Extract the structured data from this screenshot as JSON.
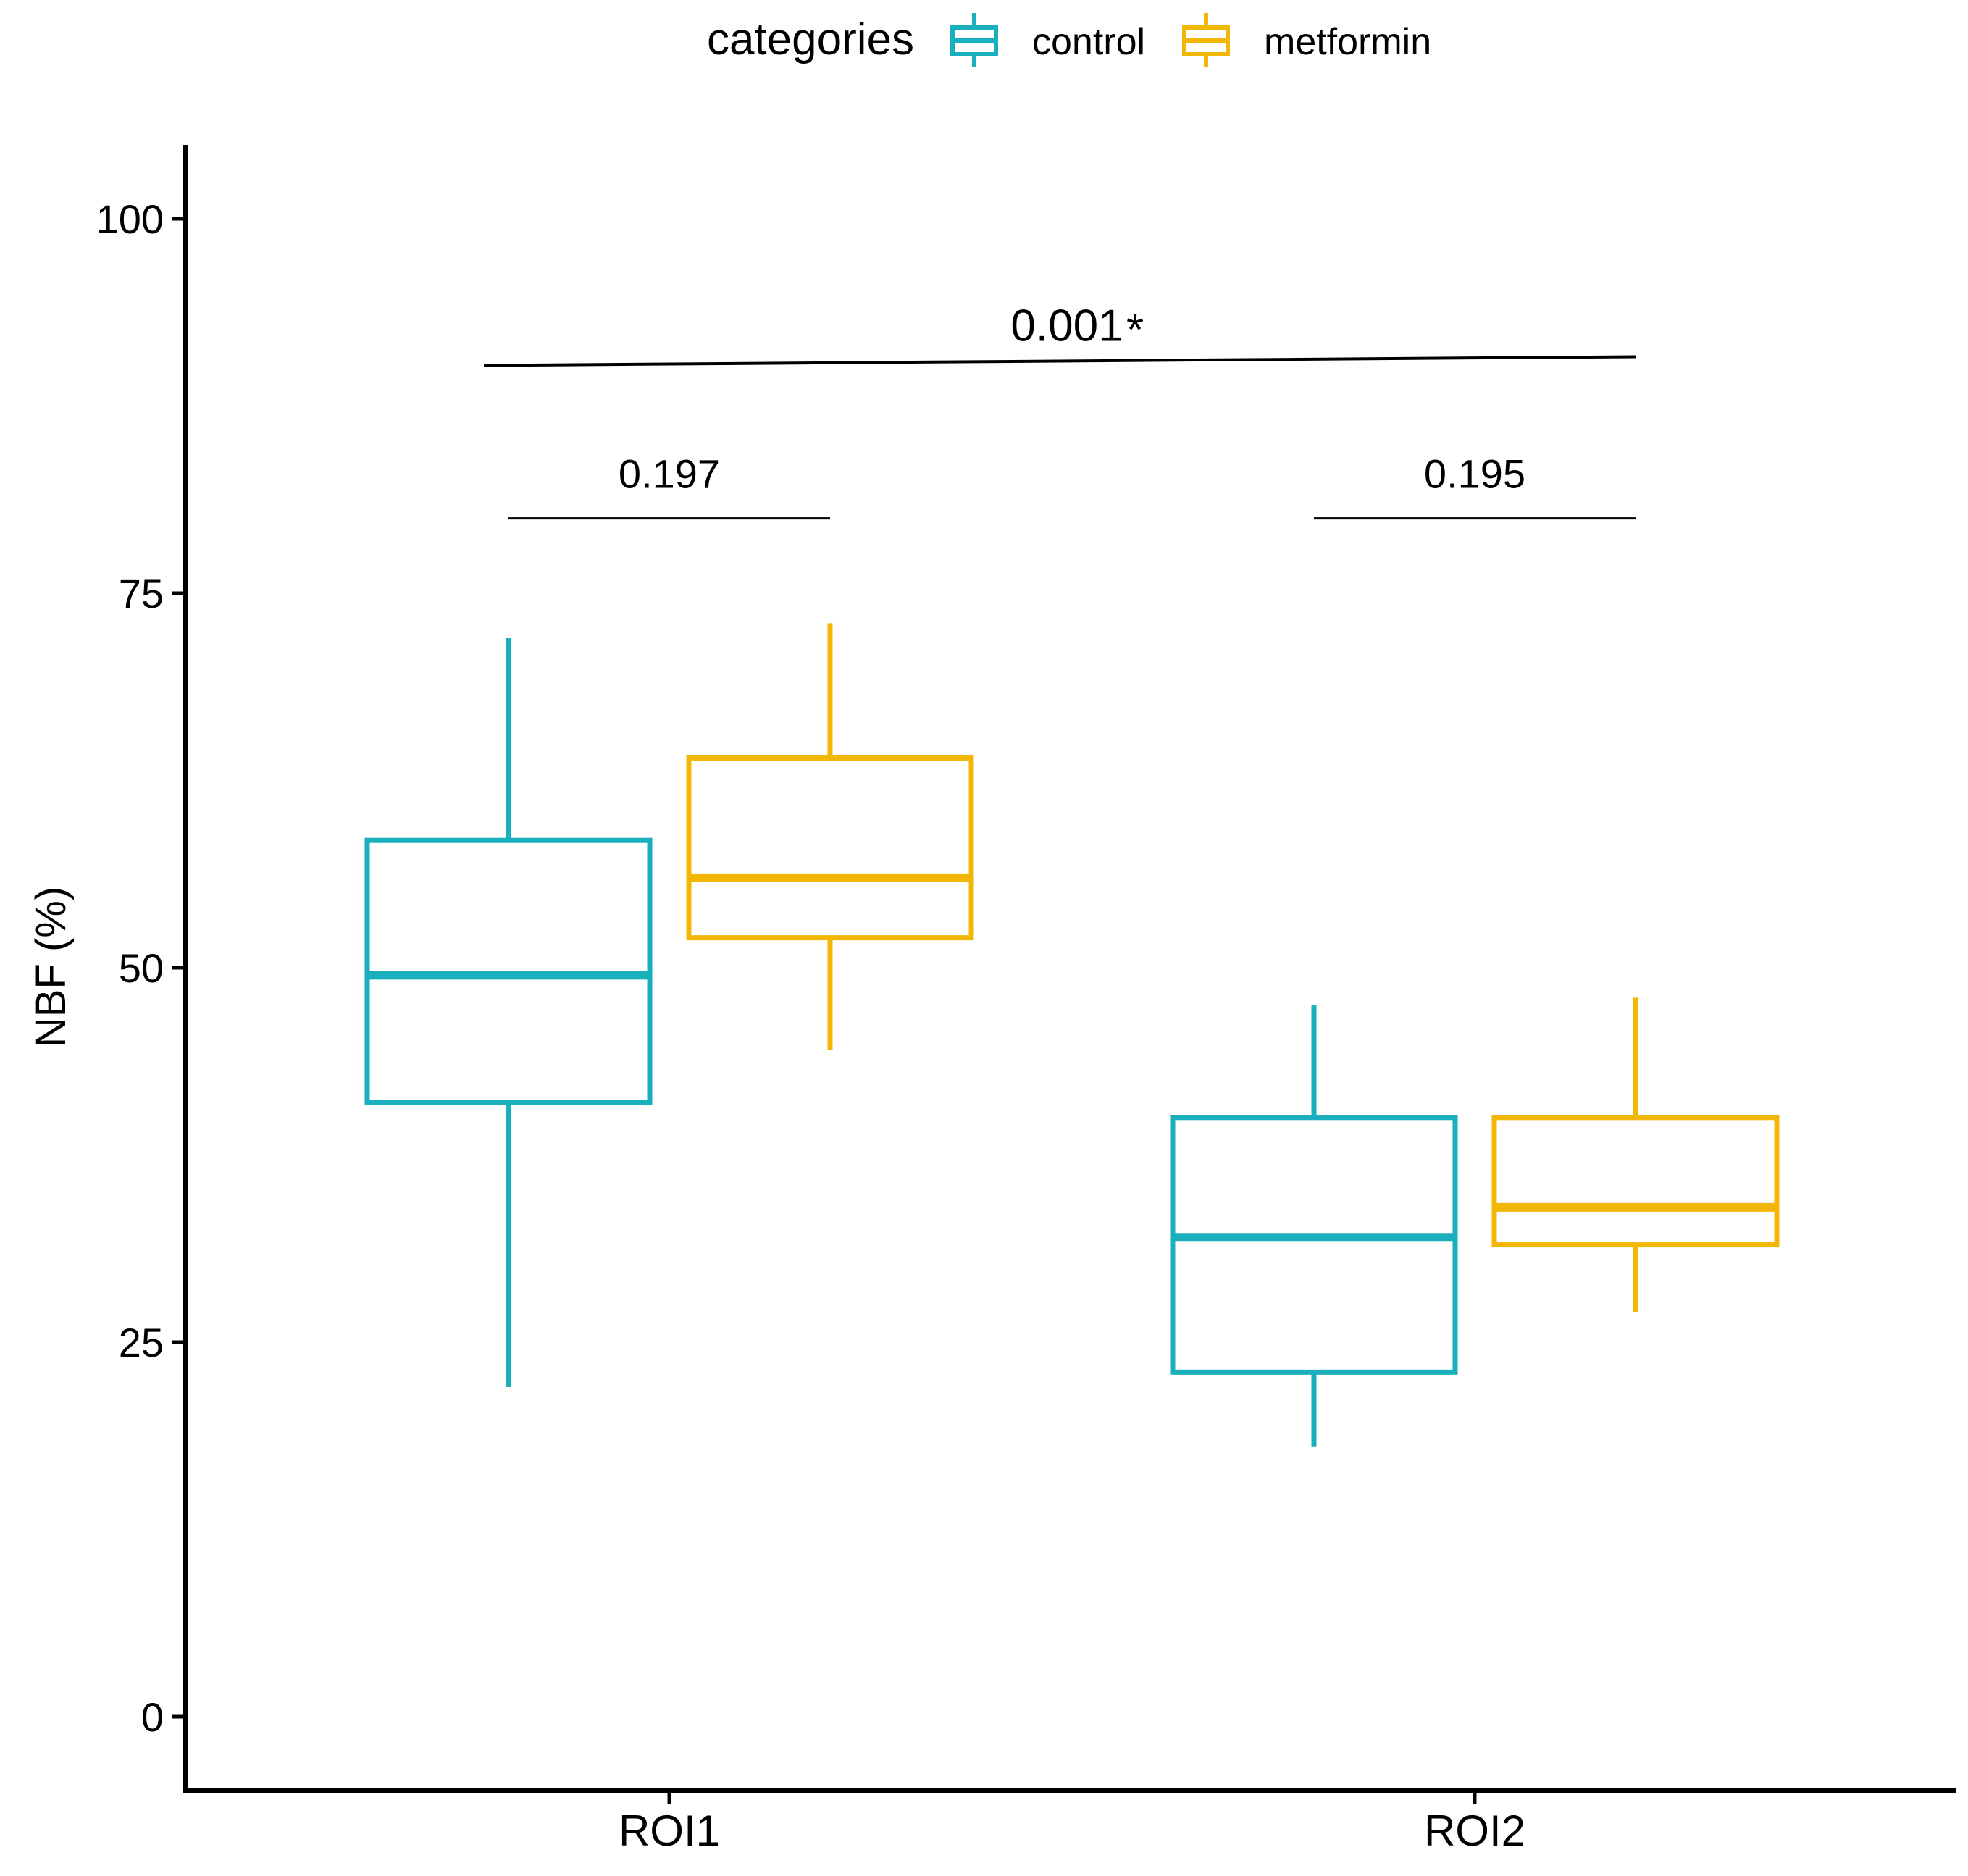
{
  "chart_data": {
    "type": "boxplot",
    "title": "",
    "xlabel": "",
    "ylabel": "NBF (%)",
    "ylim": [
      -5,
      105
    ],
    "yticks": [
      0,
      25,
      50,
      75,
      100
    ],
    "categories": [
      "ROI1",
      "ROI2"
    ],
    "legend": {
      "title": "categories",
      "position": "top",
      "entries": [
        "control",
        "metformin"
      ]
    },
    "series": [
      {
        "name": "control",
        "color": "#1AAFBC",
        "boxes": [
          {
            "category": "ROI1",
            "whisker_low": 22,
            "q1": 41,
            "median": 49.5,
            "q3": 58.5,
            "whisker_high": 72
          },
          {
            "category": "ROI2",
            "whisker_low": 18,
            "q1": 23,
            "median": 32,
            "q3": 40,
            "whisker_high": 47.5
          }
        ]
      },
      {
        "name": "metformin",
        "color": "#F2B705",
        "boxes": [
          {
            "category": "ROI1",
            "whisker_low": 44.5,
            "q1": 52,
            "median": 56,
            "q3": 64,
            "whisker_high": 73
          },
          {
            "category": "ROI2",
            "whisker_low": 27,
            "q1": 31.5,
            "median": 34,
            "q3": 40,
            "whisker_high": 48
          }
        ]
      }
    ],
    "annotations": [
      {
        "label": "0.197",
        "from_category": "ROI1",
        "from_series": "control",
        "to_category": "ROI1",
        "to_series": "metformin",
        "y": 80
      },
      {
        "label": "0.195",
        "from_category": "ROI2",
        "from_series": "control",
        "to_category": "ROI2",
        "to_series": "metformin",
        "y": 80
      },
      {
        "label": "0.001",
        "marker": "*",
        "from_category": "ROI1",
        "from_series": "center",
        "to_category": "ROI2",
        "to_series": "metformin",
        "y": 90.5
      }
    ],
    "grid": false
  }
}
